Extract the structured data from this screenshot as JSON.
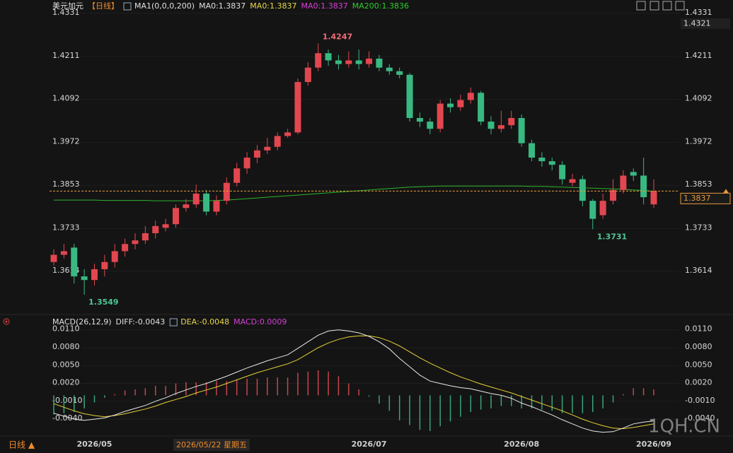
{
  "chart_data": [
    {
      "type": "candlestick",
      "header": [
        "美元加元",
        "【日线】",
        "MA1(0,0,0,200)",
        "MA0:1.3837",
        "MA0:1.3837",
        "MA0:1.3837",
        "MA200:1.3836"
      ],
      "header_colors": [
        "#e0e0e0",
        "#f08a2a",
        "#e0e0e0",
        "#e0e0e0",
        "#e8d94a",
        "#d640d6",
        "#2bcf2b"
      ],
      "categories": [
        null,
        null,
        null,
        null,
        "2026/05",
        null,
        null,
        null,
        null,
        null,
        null,
        null,
        null,
        null,
        null,
        null,
        null,
        null,
        null,
        null,
        null,
        null,
        null,
        null,
        null,
        null,
        null,
        null,
        null,
        null,
        null,
        "2026/07",
        null,
        null,
        null,
        null,
        null,
        null,
        null,
        null,
        null,
        null,
        null,
        null,
        null,
        null,
        "2026/08",
        null,
        null,
        null,
        null,
        null,
        null,
        null,
        null,
        null,
        null,
        null,
        null,
        "2026/09"
      ],
      "open": [
        1.364,
        1.366,
        1.368,
        1.36,
        1.359,
        1.362,
        1.364,
        1.367,
        1.369,
        1.37,
        1.372,
        1.3735,
        1.3745,
        1.379,
        1.38,
        1.383,
        1.378,
        1.381,
        1.386,
        1.39,
        1.393,
        1.395,
        1.396,
        1.399,
        1.4,
        1.414,
        1.418,
        1.422,
        1.42,
        1.419,
        1.42,
        1.419,
        1.4205,
        1.418,
        1.417,
        1.416,
        1.404,
        1.403,
        1.401,
        1.408,
        1.407,
        1.409,
        1.411,
        1.403,
        1.401,
        1.402,
        1.404,
        1.397,
        1.393,
        1.392,
        1.391,
        1.386,
        1.387,
        1.381,
        1.377,
        1.381,
        1.384,
        1.389,
        1.388,
        1.38
      ],
      "high": [
        1.3675,
        1.369,
        1.369,
        1.362,
        1.3635,
        1.366,
        1.369,
        1.3705,
        1.372,
        1.374,
        1.3755,
        1.376,
        1.38,
        1.3815,
        1.3855,
        1.384,
        1.3825,
        1.3875,
        1.3915,
        1.3945,
        1.3965,
        1.3985,
        1.4,
        1.401,
        1.415,
        1.4195,
        1.4247,
        1.423,
        1.4215,
        1.4225,
        1.423,
        1.4225,
        1.4215,
        1.419,
        1.418,
        1.4165,
        1.4055,
        1.404,
        1.409,
        1.4095,
        1.4105,
        1.4125,
        1.4115,
        1.4045,
        1.406,
        1.406,
        1.405,
        1.398,
        1.3945,
        1.393,
        1.392,
        1.3885,
        1.388,
        1.3815,
        1.383,
        1.387,
        1.3895,
        1.39,
        1.393,
        1.387
      ],
      "low": [
        1.363,
        1.365,
        1.358,
        1.3549,
        1.3575,
        1.36,
        1.3625,
        1.3655,
        1.3675,
        1.369,
        1.3705,
        1.3725,
        1.3735,
        1.378,
        1.379,
        1.377,
        1.377,
        1.38,
        1.385,
        1.3885,
        1.3915,
        1.394,
        1.395,
        1.3985,
        1.3995,
        1.413,
        1.417,
        1.4185,
        1.4175,
        1.418,
        1.4175,
        1.418,
        1.417,
        1.416,
        1.415,
        1.403,
        1.4015,
        1.3995,
        1.4,
        1.4055,
        1.406,
        1.408,
        1.402,
        1.3995,
        1.4,
        1.401,
        1.396,
        1.392,
        1.3905,
        1.3895,
        1.3855,
        1.385,
        1.3795,
        1.3731,
        1.376,
        1.38,
        1.383,
        1.3865,
        1.38,
        1.379
      ],
      "close": [
        1.366,
        1.367,
        1.36,
        1.359,
        1.362,
        1.364,
        1.367,
        1.369,
        1.37,
        1.372,
        1.374,
        1.3745,
        1.379,
        1.38,
        1.383,
        1.378,
        1.381,
        1.386,
        1.39,
        1.393,
        1.395,
        1.396,
        1.399,
        1.4,
        1.414,
        1.418,
        1.422,
        1.42,
        1.419,
        1.42,
        1.419,
        1.4205,
        1.418,
        1.417,
        1.416,
        1.404,
        1.403,
        1.401,
        1.408,
        1.407,
        1.409,
        1.411,
        1.403,
        1.401,
        1.402,
        1.404,
        1.397,
        1.393,
        1.392,
        1.391,
        1.387,
        1.387,
        1.381,
        1.376,
        1.381,
        1.384,
        1.388,
        1.388,
        1.382,
        1.3837
      ],
      "up_color": "#e2474f",
      "down_color": "#39b982",
      "ma200": {
        "color": "#2db52d",
        "values": [
          1.3812,
          1.3812,
          1.3812,
          1.3812,
          1.3812,
          1.3811,
          1.3811,
          1.3811,
          1.3811,
          1.3811,
          1.381,
          1.381,
          1.381,
          1.381,
          1.381,
          1.381,
          1.3811,
          1.3812,
          1.3814,
          1.3816,
          1.3818,
          1.382,
          1.3822,
          1.3824,
          1.3826,
          1.3828,
          1.383,
          1.3832,
          1.3834,
          1.3836,
          1.3838,
          1.384,
          1.3842,
          1.3844,
          1.3846,
          1.3848,
          1.3849,
          1.385,
          1.3851,
          1.3851,
          1.3851,
          1.3851,
          1.3851,
          1.3851,
          1.3851,
          1.3851,
          1.3851,
          1.385,
          1.385,
          1.3849,
          1.3848,
          1.3847,
          1.3846,
          1.3845,
          1.3844,
          1.3843,
          1.3842,
          1.384,
          1.3839,
          1.3836
        ]
      },
      "current_price": 1.3837,
      "price_marker": "1.4321",
      "ylim": [
        1.3504,
        1.4358
      ],
      "yticks": [
        1.3614,
        1.3733,
        1.3853,
        1.3972,
        1.4092,
        1.4211,
        1.4331
      ],
      "crosshair_date": "2026/05/22 星期五",
      "period_tab": "日线 ▲",
      "watermark": "1QH.CN"
    },
    {
      "type": "macd",
      "header": [
        "MACD(26,12,9)",
        "DIFF:-0.0043",
        "DEA:-0.0048",
        "MACD:0.0009"
      ],
      "header_colors": [
        "#e0e0e0",
        "#e0e0e0",
        "#e8d94a",
        "#d640d6"
      ],
      "diff": {
        "color": "#e8e8e8",
        "values": [
          -0.003,
          -0.0035,
          -0.004,
          -0.0042,
          -0.004,
          -0.0038,
          -0.0033,
          -0.0027,
          -0.0022,
          -0.0017,
          -0.001,
          -0.0004,
          0.0003,
          0.0009,
          0.0015,
          0.002,
          0.0026,
          0.0032,
          0.0039,
          0.0046,
          0.0052,
          0.0058,
          0.0063,
          0.0068,
          0.0079,
          0.009,
          0.0101,
          0.0108,
          0.011,
          0.0108,
          0.0105,
          0.0099,
          0.009,
          0.0078,
          0.0062,
          0.0048,
          0.0034,
          0.0024,
          0.002,
          0.0016,
          0.0013,
          0.0011,
          0.0007,
          0.0003,
          0.0,
          -0.0005,
          -0.0013,
          -0.0019,
          -0.0026,
          -0.0033,
          -0.0041,
          -0.0048,
          -0.0055,
          -0.006,
          -0.0062,
          -0.0061,
          -0.0055,
          -0.0048,
          -0.0045,
          -0.0043
        ]
      },
      "dea": {
        "color": "#e6d236",
        "values": [
          -0.0014,
          -0.002,
          -0.0026,
          -0.0031,
          -0.0034,
          -0.0036,
          -0.0034,
          -0.0031,
          -0.0027,
          -0.0023,
          -0.0018,
          -0.0012,
          -0.0007,
          -0.0002,
          0.0004,
          0.0009,
          0.0014,
          0.002,
          0.0026,
          0.0032,
          0.0038,
          0.0043,
          0.0048,
          0.0053,
          0.006,
          0.007,
          0.008,
          0.0088,
          0.0094,
          0.0098,
          0.01,
          0.01,
          0.0097,
          0.0091,
          0.0083,
          0.0073,
          0.0063,
          0.0054,
          0.0046,
          0.0038,
          0.0031,
          0.0025,
          0.0019,
          0.0014,
          0.0009,
          0.0004,
          -0.0002,
          -0.0008,
          -0.0014,
          -0.002,
          -0.0026,
          -0.0033,
          -0.004,
          -0.0046,
          -0.0051,
          -0.0055,
          -0.0056,
          -0.0054,
          -0.0051,
          -0.0048
        ]
      },
      "hist": {
        "up_color": "#c8454e",
        "down_color": "#3aa47a",
        "values": [
          -0.0032,
          -0.003,
          -0.0028,
          -0.0022,
          -0.0012,
          -0.0004,
          0.0002,
          0.0008,
          0.001,
          0.0012,
          0.0016,
          0.0016,
          0.002,
          0.0022,
          0.0022,
          0.0022,
          0.0024,
          0.0024,
          0.0026,
          0.0028,
          0.0028,
          0.003,
          0.003,
          0.003,
          0.0038,
          0.004,
          0.0042,
          0.004,
          0.0032,
          0.002,
          0.001,
          -0.0002,
          -0.0014,
          -0.0026,
          -0.0042,
          -0.005,
          -0.0058,
          -0.006,
          -0.0052,
          -0.0044,
          -0.0036,
          -0.0028,
          -0.0024,
          -0.0022,
          -0.0018,
          -0.0018,
          -0.0022,
          -0.0022,
          -0.0024,
          -0.0026,
          -0.003,
          -0.003,
          -0.003,
          -0.0028,
          -0.0022,
          -0.0012,
          0.0002,
          0.0012,
          0.0012,
          0.001
        ]
      },
      "ylim": [
        -0.0066,
        0.0118
      ],
      "yticks": [
        {
          "value": -0.004,
          "label": "-0.0040"
        },
        {
          "value": -0.001,
          "label": "-0.0010"
        },
        {
          "value": 0.002,
          "label": "0.0020"
        },
        {
          "value": 0.005,
          "label": "0.0050"
        },
        {
          "value": 0.008,
          "label": "0.0080"
        },
        {
          "value": 0.011,
          "label": "0.0110"
        }
      ]
    }
  ]
}
